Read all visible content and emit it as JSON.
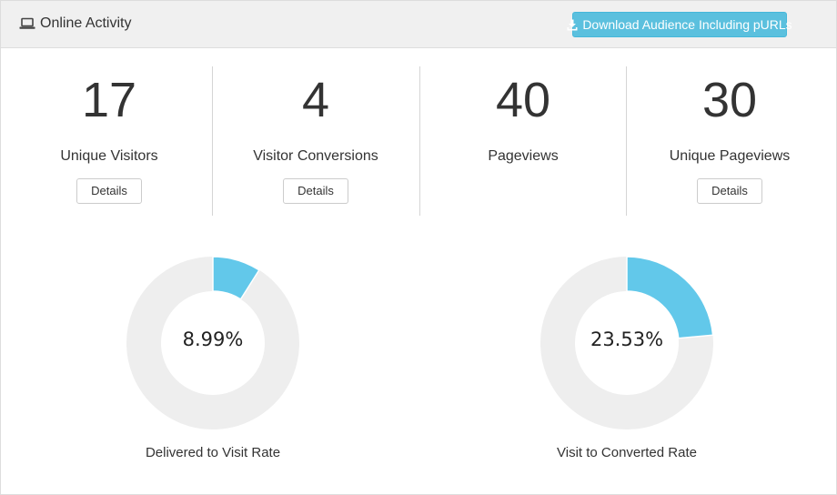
{
  "header": {
    "title": "Online Activity",
    "title_icon": "laptop-icon",
    "download_button": {
      "label": "Download Audience Including pURLs",
      "icon": "download-icon"
    }
  },
  "metrics": [
    {
      "value": "17",
      "label": "Unique Visitors",
      "details": "Details"
    },
    {
      "value": "4",
      "label": "Visitor Conversions",
      "details": "Details"
    },
    {
      "value": "40",
      "label": "Pageviews"
    },
    {
      "value": "30",
      "label": "Unique Pageviews",
      "details": "Details"
    }
  ],
  "rates": [
    {
      "value": "8.99%",
      "percent": 8.99,
      "label": "Delivered to Visit Rate"
    },
    {
      "value": "23.53%",
      "percent": 23.53,
      "label": "Visit to Converted Rate"
    }
  ],
  "colors": {
    "accent": "#5bc0de",
    "donut_fill": "#62c8ea",
    "donut_track": "#eeeeee",
    "header_bg": "#f0f0f0"
  }
}
